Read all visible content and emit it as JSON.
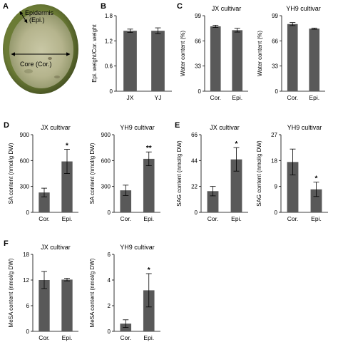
{
  "photo": {
    "panel_label": "A",
    "epidermis_label": "Epidermis",
    "epidermis_abbr": "(Epi.)",
    "core_label": "Core (Cor.)",
    "colors": {
      "rind": "#55652b",
      "flesh": "#b8b894",
      "background": "#ffffff"
    }
  },
  "bar_color": "#595959",
  "chart_data": [
    {
      "id": "B",
      "panel_label": "B",
      "type": "bar",
      "title": "",
      "categories": [
        "JX",
        "YJ"
      ],
      "values": [
        1.44,
        1.44
      ],
      "errors": [
        0.04,
        0.07
      ],
      "ylabel": "Epi. weight/Cor. weight",
      "ylim": [
        0,
        1.8
      ],
      "yticks": [
        "0",
        "0.6",
        "1.2",
        "1.8"
      ],
      "significance": [
        "",
        ""
      ]
    },
    {
      "id": "C1",
      "panel_label": "C",
      "type": "bar",
      "title": "JX cultivar",
      "categories": [
        "Cor.",
        "Epi."
      ],
      "values": [
        85,
        80
      ],
      "errors": [
        1.5,
        2.5
      ],
      "ylabel": "Water content (%)",
      "ylim": [
        0,
        99
      ],
      "yticks": [
        "0",
        "33",
        "66",
        "99"
      ],
      "significance": [
        "",
        ""
      ]
    },
    {
      "id": "C2",
      "panel_label": "",
      "type": "bar",
      "title": "YH9 cultivar",
      "categories": [
        "Cor.",
        "Epi."
      ],
      "values": [
        88,
        82
      ],
      "errors": [
        2,
        0.8
      ],
      "ylabel": "Water content (%)",
      "ylim": [
        0,
        99
      ],
      "yticks": [
        "0",
        "33",
        "66",
        "99"
      ],
      "significance": [
        "",
        ""
      ]
    },
    {
      "id": "D1",
      "panel_label": "D",
      "type": "bar",
      "title": "JX cultivar",
      "categories": [
        "Cor.",
        "Epi."
      ],
      "values": [
        230,
        590
      ],
      "errors": [
        50,
        140
      ],
      "ylabel": "SA content (nmol/g DW)",
      "ylim": [
        0,
        900
      ],
      "yticks": [
        "0",
        "300",
        "600",
        "900"
      ],
      "significance": [
        "",
        "*"
      ]
    },
    {
      "id": "D2",
      "panel_label": "",
      "type": "bar",
      "title": "YH9 cultivar",
      "categories": [
        "Cor.",
        "Epi."
      ],
      "values": [
        255,
        620
      ],
      "errors": [
        60,
        80
      ],
      "ylabel": "SA content (nmol/g DW)",
      "ylim": [
        0,
        900
      ],
      "yticks": [
        "0",
        "300",
        "600",
        "900"
      ],
      "significance": [
        "",
        "**"
      ]
    },
    {
      "id": "E1",
      "panel_label": "E",
      "type": "bar",
      "title": "JX cultivar",
      "categories": [
        "Cor.",
        "Epi."
      ],
      "values": [
        18,
        45
      ],
      "errors": [
        4,
        10
      ],
      "ylabel": "SAG content (nmol/g DW)",
      "ylim": [
        0,
        66
      ],
      "yticks": [
        "0",
        "22",
        "44",
        "66"
      ],
      "significance": [
        "",
        "*"
      ]
    },
    {
      "id": "E2",
      "panel_label": "",
      "type": "bar",
      "title": "YH9 cultivar",
      "categories": [
        "Cor.",
        "Epi."
      ],
      "values": [
        17.5,
        8
      ],
      "errors": [
        4.5,
        2.5
      ],
      "ylabel": "SAG content (nmol/g DW)",
      "ylim": [
        0,
        27
      ],
      "yticks": [
        "0",
        "9",
        "18",
        "27"
      ],
      "significance": [
        "",
        "*"
      ]
    },
    {
      "id": "F1",
      "panel_label": "F",
      "type": "bar",
      "title": "JX cultivar",
      "categories": [
        "Cor.",
        "Epi."
      ],
      "values": [
        12,
        12.1
      ],
      "errors": [
        2,
        0.3
      ],
      "ylabel": "MeSA content (nmol/g DW)",
      "ylim": [
        0,
        18
      ],
      "yticks": [
        "0",
        "6",
        "12",
        "18"
      ],
      "significance": [
        "",
        ""
      ]
    },
    {
      "id": "F2",
      "panel_label": "",
      "type": "bar",
      "title": "YH9 cultivar",
      "categories": [
        "Cor.",
        "Epi."
      ],
      "values": [
        0.6,
        3.2
      ],
      "errors": [
        0.3,
        1.3
      ],
      "ylabel": "MeSA content (nmol/g DW)",
      "ylim": [
        0,
        6
      ],
      "yticks": [
        "0",
        "2",
        "4",
        "6"
      ],
      "significance": [
        "",
        "*"
      ]
    }
  ]
}
